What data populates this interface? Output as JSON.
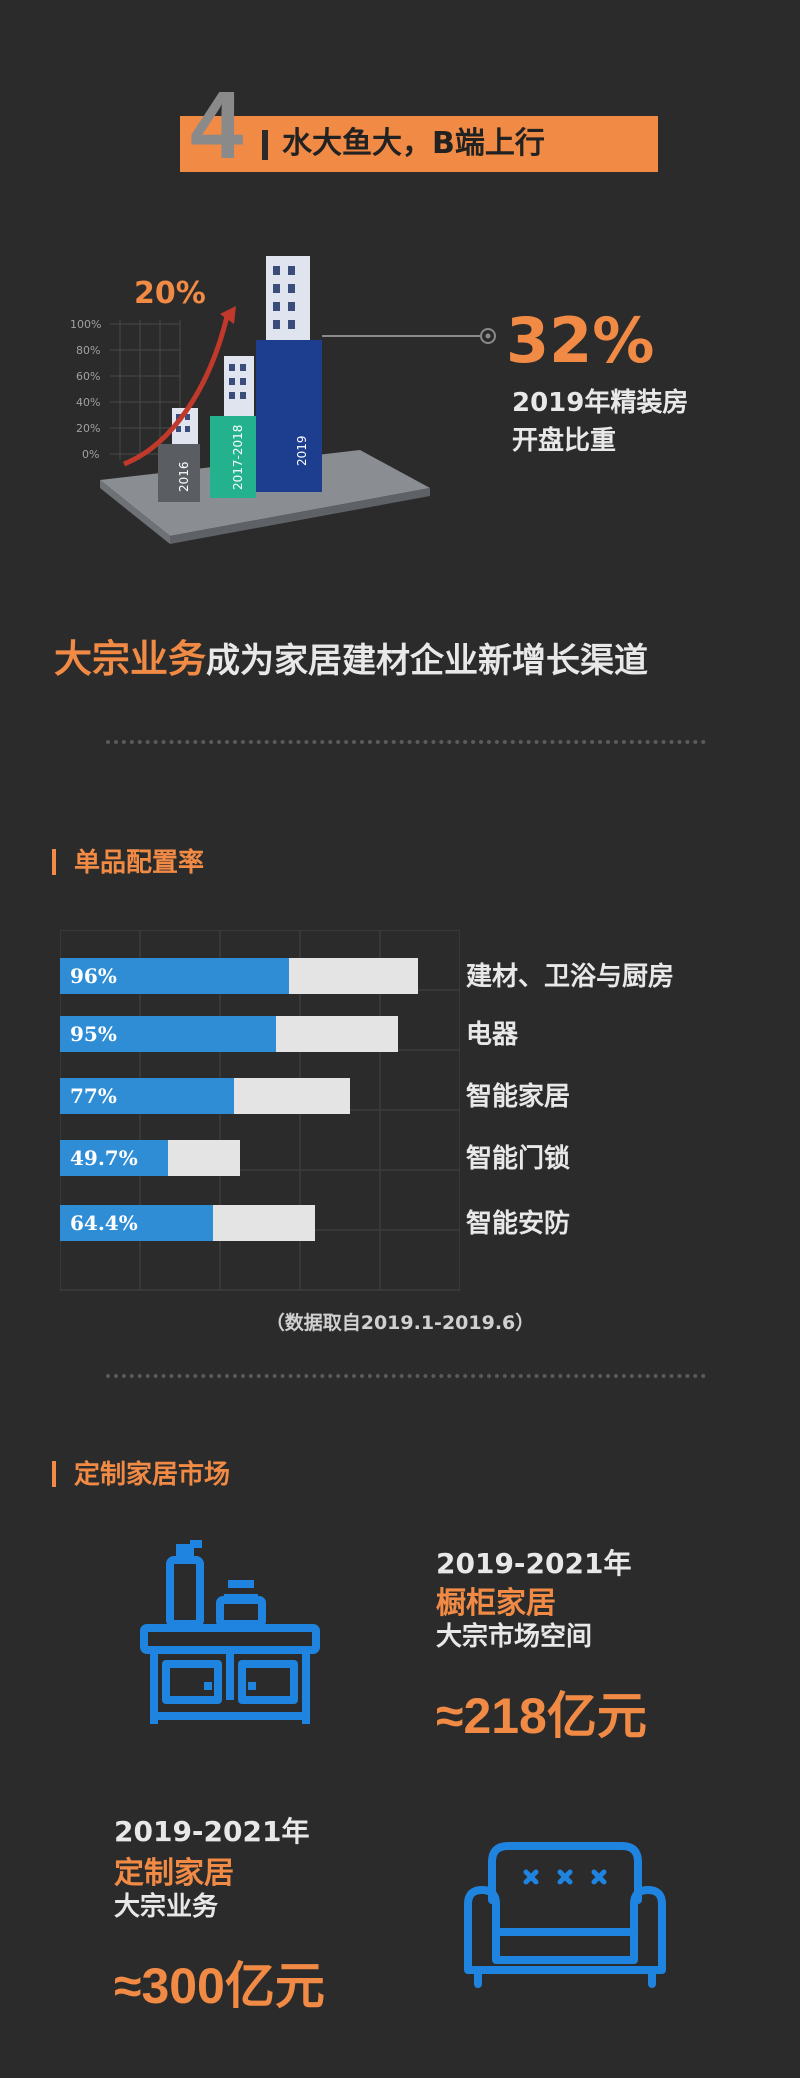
{
  "header": {
    "number": "4",
    "title": "水大鱼大，B端上行"
  },
  "hero": {
    "growth_label": "20%",
    "y_ticks": [
      "100%",
      "80%",
      "60%",
      "40%",
      "20%",
      "0%"
    ],
    "buildings": [
      "2016",
      "2017-2018",
      "2019"
    ],
    "stat_value": "32%",
    "stat_label_line1": "2019年精装房",
    "stat_label_line2": "开盘比重"
  },
  "headline": {
    "highlight": "大宗业务",
    "rest": "成为家居建材企业新增长渠道"
  },
  "config_section": {
    "title": "单品配置率",
    "source_note": "（数据取自2019.1-2019.6）"
  },
  "chart_data": {
    "type": "bar",
    "orientation": "horizontal",
    "title": "单品配置率",
    "categories": [
      "建材、卫浴与厨房",
      "电器",
      "智能家居",
      "智能门锁",
      "智能安防"
    ],
    "labels": [
      "96%",
      "95%",
      "77%",
      "49.7%",
      "64.4%"
    ],
    "values": [
      96,
      95,
      77,
      49.7,
      64.4
    ],
    "colors": {
      "fill": "#2f8dd6",
      "track": "#e4e4e4"
    }
  },
  "custom_section": {
    "title": "定制家居市场",
    "items": [
      {
        "year": "2019-2021年",
        "category": "橱柜家居",
        "desc": "大宗市场空间",
        "value": "≈218亿元",
        "icon": "kitchen-cabinet-icon"
      },
      {
        "year": "2019-2021年",
        "category": "定制家居",
        "desc": "大宗业务",
        "value": "≈300亿元",
        "icon": "sofa-icon"
      }
    ]
  },
  "colors": {
    "background": "#2b2b2b",
    "accent": "#f08a44",
    "icon_blue": "#1f84e0",
    "text": "#e8e8e8"
  }
}
